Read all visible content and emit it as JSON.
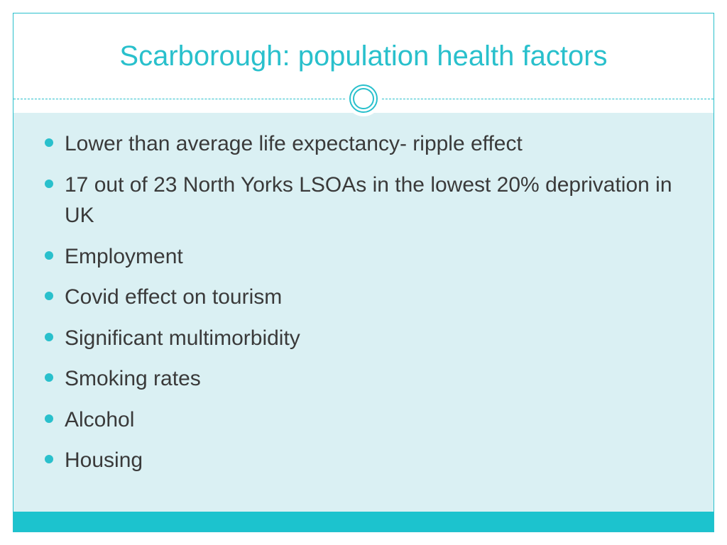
{
  "slide": {
    "title": "Scarborough: population health factors",
    "bullets": [
      "Lower than average life expectancy- ripple effect",
      "17 out of 23 North Yorks LSOAs in the lowest 20% deprivation in UK",
      "Employment",
      "Covid effect on tourism",
      "Significant multimorbidity",
      "Smoking rates",
      "Alcohol",
      "Housing"
    ]
  },
  "style": {
    "accent_color": "#29c0cc",
    "content_background": "#daf0f3",
    "bottom_bar_color": "#1cc3ce",
    "title_fontsize": 40,
    "bullet_fontsize": 30,
    "text_color": "#3a3a3a",
    "frame_border": "#29c0cc"
  }
}
